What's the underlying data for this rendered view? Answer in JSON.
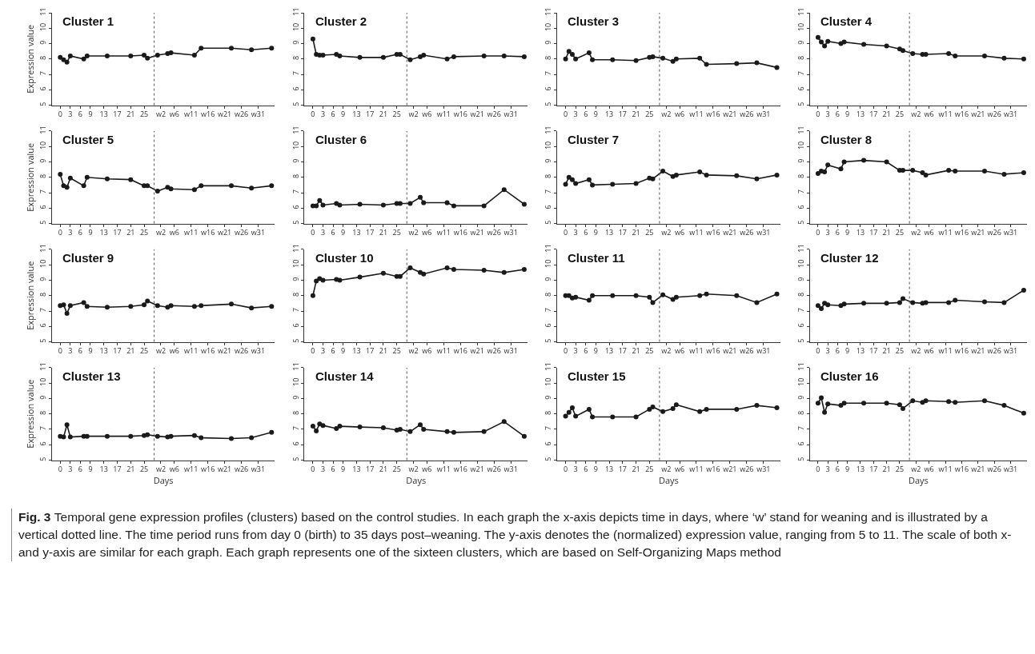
{
  "chart_data": [
    {
      "type": "line",
      "title": "Cluster 1",
      "ylabel": "Expression value",
      "x": [
        0,
        1,
        2,
        3,
        7,
        8,
        14,
        21,
        25,
        26,
        29,
        32,
        33,
        40,
        42,
        51,
        57,
        63
      ],
      "values": [
        8.1,
        7.95,
        7.8,
        8.2,
        8.0,
        8.2,
        8.2,
        8.2,
        8.25,
        8.05,
        8.25,
        8.35,
        8.4,
        8.25,
        8.7,
        8.7,
        8.6,
        8.7
      ],
      "color": "#1a1a1a",
      "marker": "circle",
      "xlim": [
        -2.5,
        64
      ],
      "ylim": [
        5,
        11
      ],
      "xticks": [
        0,
        3,
        6,
        9,
        13,
        17,
        21,
        25,
        {
          "value": 30,
          "label": "w2"
        },
        {
          "value": 34,
          "label": "w6"
        },
        {
          "value": 39,
          "label": "w11"
        },
        {
          "value": 44,
          "label": "w16"
        },
        {
          "value": 49,
          "label": "w21"
        },
        {
          "value": 54,
          "label": "w26"
        },
        {
          "value": 59,
          "label": "w31"
        }
      ],
      "yticks": [
        5,
        6,
        7,
        8,
        9,
        10,
        11
      ],
      "ref_lines": [
        {
          "axis": "x",
          "value": 28,
          "color": "#555555",
          "line_style": "dotted"
        }
      ]
    },
    {
      "type": "line",
      "title": "Cluster 2",
      "x": [
        0,
        1,
        2,
        3,
        7,
        8,
        14,
        21,
        25,
        26,
        29,
        32,
        33,
        40,
        42,
        51,
        57,
        63
      ],
      "values": [
        9.3,
        8.3,
        8.25,
        8.25,
        8.3,
        8.2,
        8.1,
        8.1,
        8.3,
        8.3,
        7.95,
        8.15,
        8.25,
        8.0,
        8.15,
        8.2,
        8.2,
        8.15
      ],
      "color": "#1a1a1a",
      "marker": "circle",
      "xlim": [
        -2.5,
        64
      ],
      "ylim": [
        5,
        11
      ],
      "xticks": [
        0,
        3,
        6,
        9,
        13,
        17,
        21,
        25,
        {
          "value": 30,
          "label": "w2"
        },
        {
          "value": 34,
          "label": "w6"
        },
        {
          "value": 39,
          "label": "w11"
        },
        {
          "value": 44,
          "label": "w16"
        },
        {
          "value": 49,
          "label": "w21"
        },
        {
          "value": 54,
          "label": "w26"
        },
        {
          "value": 59,
          "label": "w31"
        }
      ],
      "yticks": [
        5,
        6,
        7,
        8,
        9,
        10,
        11
      ],
      "ref_lines": [
        {
          "axis": "x",
          "value": 28,
          "color": "#555555",
          "line_style": "dotted"
        }
      ]
    },
    {
      "type": "line",
      "title": "Cluster 3",
      "x": [
        0,
        1,
        2,
        3,
        7,
        8,
        14,
        21,
        25,
        26,
        29,
        32,
        33,
        40,
        42,
        51,
        57,
        63
      ],
      "values": [
        8.0,
        8.5,
        8.3,
        8.0,
        8.4,
        7.95,
        7.95,
        7.9,
        8.1,
        8.15,
        8.05,
        7.85,
        8.0,
        8.05,
        7.65,
        7.7,
        7.75,
        7.45
      ],
      "color": "#1a1a1a",
      "marker": "circle",
      "xlim": [
        -2.5,
        64
      ],
      "ylim": [
        5,
        11
      ],
      "xticks": [
        0,
        3,
        6,
        9,
        13,
        17,
        21,
        25,
        {
          "value": 30,
          "label": "w2"
        },
        {
          "value": 34,
          "label": "w6"
        },
        {
          "value": 39,
          "label": "w11"
        },
        {
          "value": 44,
          "label": "w16"
        },
        {
          "value": 49,
          "label": "w21"
        },
        {
          "value": 54,
          "label": "w26"
        },
        {
          "value": 59,
          "label": "w31"
        }
      ],
      "yticks": [
        5,
        6,
        7,
        8,
        9,
        10,
        11
      ],
      "ref_lines": [
        {
          "axis": "x",
          "value": 28,
          "color": "#555555",
          "line_style": "dotted"
        }
      ]
    },
    {
      "type": "line",
      "title": "Cluster 4",
      "x": [
        0,
        1,
        2,
        3,
        7,
        8,
        14,
        21,
        25,
        26,
        29,
        32,
        33,
        40,
        42,
        51,
        57,
        63
      ],
      "values": [
        9.4,
        9.1,
        8.85,
        9.15,
        9.0,
        9.1,
        8.95,
        8.85,
        8.65,
        8.55,
        8.35,
        8.3,
        8.3,
        8.35,
        8.2,
        8.2,
        8.05,
        8.0
      ],
      "color": "#1a1a1a",
      "marker": "circle",
      "xlim": [
        -2.5,
        64
      ],
      "ylim": [
        5,
        11
      ],
      "xticks": [
        0,
        3,
        6,
        9,
        13,
        17,
        21,
        25,
        {
          "value": 30,
          "label": "w2"
        },
        {
          "value": 34,
          "label": "w6"
        },
        {
          "value": 39,
          "label": "w11"
        },
        {
          "value": 44,
          "label": "w16"
        },
        {
          "value": 49,
          "label": "w21"
        },
        {
          "value": 54,
          "label": "w26"
        },
        {
          "value": 59,
          "label": "w31"
        }
      ],
      "yticks": [
        5,
        6,
        7,
        8,
        9,
        10,
        11
      ],
      "ref_lines": [
        {
          "axis": "x",
          "value": 28,
          "color": "#555555",
          "line_style": "dotted"
        }
      ]
    },
    {
      "type": "line",
      "title": "Cluster 5",
      "ylabel": "Expression value",
      "x": [
        0,
        1,
        2,
        3,
        7,
        8,
        14,
        21,
        25,
        26,
        29,
        32,
        33,
        40,
        42,
        51,
        57,
        63
      ],
      "values": [
        8.2,
        7.45,
        7.35,
        7.95,
        7.45,
        8.0,
        7.9,
        7.85,
        7.45,
        7.45,
        7.1,
        7.35,
        7.25,
        7.2,
        7.45,
        7.45,
        7.3,
        7.45
      ],
      "color": "#1a1a1a",
      "marker": "circle",
      "xlim": [
        -2.5,
        64
      ],
      "ylim": [
        5,
        11
      ],
      "xticks": [
        0,
        3,
        6,
        9,
        13,
        17,
        21,
        25,
        {
          "value": 30,
          "label": "w2"
        },
        {
          "value": 34,
          "label": "w6"
        },
        {
          "value": 39,
          "label": "w11"
        },
        {
          "value": 44,
          "label": "w16"
        },
        {
          "value": 49,
          "label": "w21"
        },
        {
          "value": 54,
          "label": "w26"
        },
        {
          "value": 59,
          "label": "w31"
        }
      ],
      "yticks": [
        5,
        6,
        7,
        8,
        9,
        10,
        11
      ],
      "ref_lines": [
        {
          "axis": "x",
          "value": 28,
          "color": "#555555",
          "line_style": "dotted"
        }
      ]
    },
    {
      "type": "line",
      "title": "Cluster 6",
      "x": [
        0,
        1,
        2,
        3,
        7,
        8,
        14,
        21,
        25,
        26,
        29,
        32,
        33,
        40,
        42,
        51,
        57,
        63
      ],
      "values": [
        6.15,
        6.15,
        6.5,
        6.2,
        6.3,
        6.2,
        6.25,
        6.2,
        6.3,
        6.3,
        6.3,
        6.7,
        6.35,
        6.35,
        6.15,
        6.15,
        7.2,
        6.25
      ],
      "color": "#1a1a1a",
      "marker": "circle",
      "xlim": [
        -2.5,
        64
      ],
      "ylim": [
        5,
        11
      ],
      "xticks": [
        0,
        3,
        6,
        9,
        13,
        17,
        21,
        25,
        {
          "value": 30,
          "label": "w2"
        },
        {
          "value": 34,
          "label": "w6"
        },
        {
          "value": 39,
          "label": "w11"
        },
        {
          "value": 44,
          "label": "w16"
        },
        {
          "value": 49,
          "label": "w21"
        },
        {
          "value": 54,
          "label": "w26"
        },
        {
          "value": 59,
          "label": "w31"
        }
      ],
      "yticks": [
        5,
        6,
        7,
        8,
        9,
        10,
        11
      ],
      "ref_lines": [
        {
          "axis": "x",
          "value": 28,
          "color": "#555555",
          "line_style": "dotted"
        }
      ]
    },
    {
      "type": "line",
      "title": "Cluster 7",
      "x": [
        0,
        1,
        2,
        3,
        7,
        8,
        14,
        21,
        25,
        26,
        29,
        32,
        33,
        40,
        42,
        51,
        57,
        63
      ],
      "values": [
        7.55,
        8.0,
        7.85,
        7.6,
        7.85,
        7.5,
        7.55,
        7.6,
        7.95,
        7.9,
        8.4,
        8.05,
        8.15,
        8.35,
        8.15,
        8.1,
        7.9,
        8.15
      ],
      "color": "#1a1a1a",
      "marker": "circle",
      "xlim": [
        -2.5,
        64
      ],
      "ylim": [
        5,
        11
      ],
      "xticks": [
        0,
        3,
        6,
        9,
        13,
        17,
        21,
        25,
        {
          "value": 30,
          "label": "w2"
        },
        {
          "value": 34,
          "label": "w6"
        },
        {
          "value": 39,
          "label": "w11"
        },
        {
          "value": 44,
          "label": "w16"
        },
        {
          "value": 49,
          "label": "w21"
        },
        {
          "value": 54,
          "label": "w26"
        },
        {
          "value": 59,
          "label": "w31"
        }
      ],
      "yticks": [
        5,
        6,
        7,
        8,
        9,
        10,
        11
      ],
      "ref_lines": [
        {
          "axis": "x",
          "value": 28,
          "color": "#555555",
          "line_style": "dotted"
        }
      ]
    },
    {
      "type": "line",
      "title": "Cluster 8",
      "x": [
        0,
        1,
        2,
        3,
        7,
        8,
        14,
        21,
        25,
        26,
        29,
        32,
        33,
        40,
        42,
        51,
        57,
        63
      ],
      "values": [
        8.25,
        8.4,
        8.35,
        8.8,
        8.55,
        9.0,
        9.1,
        9.0,
        8.45,
        8.45,
        8.45,
        8.3,
        8.15,
        8.45,
        8.4,
        8.4,
        8.2,
        8.3
      ],
      "color": "#1a1a1a",
      "marker": "circle",
      "xlim": [
        -2.5,
        64
      ],
      "ylim": [
        5,
        11
      ],
      "xticks": [
        0,
        3,
        6,
        9,
        13,
        17,
        21,
        25,
        {
          "value": 30,
          "label": "w2"
        },
        {
          "value": 34,
          "label": "w6"
        },
        {
          "value": 39,
          "label": "w11"
        },
        {
          "value": 44,
          "label": "w16"
        },
        {
          "value": 49,
          "label": "w21"
        },
        {
          "value": 54,
          "label": "w26"
        },
        {
          "value": 59,
          "label": "w31"
        }
      ],
      "yticks": [
        5,
        6,
        7,
        8,
        9,
        10,
        11
      ],
      "ref_lines": [
        {
          "axis": "x",
          "value": 28,
          "color": "#555555",
          "line_style": "dotted"
        }
      ]
    },
    {
      "type": "line",
      "title": "Cluster 9",
      "ylabel": "Expression value",
      "x": [
        0,
        1,
        2,
        3,
        7,
        8,
        14,
        21,
        25,
        26,
        29,
        32,
        33,
        40,
        42,
        51,
        57,
        63
      ],
      "values": [
        7.35,
        7.4,
        6.85,
        7.35,
        7.55,
        7.3,
        7.25,
        7.3,
        7.4,
        7.65,
        7.35,
        7.25,
        7.35,
        7.3,
        7.35,
        7.45,
        7.2,
        7.3
      ],
      "color": "#1a1a1a",
      "marker": "circle",
      "xlim": [
        -2.5,
        64
      ],
      "ylim": [
        5,
        11
      ],
      "xticks": [
        0,
        3,
        6,
        9,
        13,
        17,
        21,
        25,
        {
          "value": 30,
          "label": "w2"
        },
        {
          "value": 34,
          "label": "w6"
        },
        {
          "value": 39,
          "label": "w11"
        },
        {
          "value": 44,
          "label": "w16"
        },
        {
          "value": 49,
          "label": "w21"
        },
        {
          "value": 54,
          "label": "w26"
        },
        {
          "value": 59,
          "label": "w31"
        }
      ],
      "yticks": [
        5,
        6,
        7,
        8,
        9,
        10,
        11
      ],
      "ref_lines": [
        {
          "axis": "x",
          "value": 28,
          "color": "#555555",
          "line_style": "dotted"
        }
      ]
    },
    {
      "type": "line",
      "title": "Cluster 10",
      "x": [
        0,
        1,
        2,
        3,
        7,
        8,
        14,
        21,
        25,
        26,
        29,
        32,
        33,
        40,
        42,
        51,
        57,
        63
      ],
      "values": [
        8.0,
        8.95,
        9.1,
        9.0,
        9.05,
        9.0,
        9.2,
        9.45,
        9.25,
        9.25,
        9.8,
        9.5,
        9.4,
        9.8,
        9.7,
        9.65,
        9.5,
        9.7
      ],
      "color": "#1a1a1a",
      "marker": "circle",
      "xlim": [
        -2.5,
        64
      ],
      "ylim": [
        5,
        11
      ],
      "xticks": [
        0,
        3,
        6,
        9,
        13,
        17,
        21,
        25,
        {
          "value": 30,
          "label": "w2"
        },
        {
          "value": 34,
          "label": "w6"
        },
        {
          "value": 39,
          "label": "w11"
        },
        {
          "value": 44,
          "label": "w16"
        },
        {
          "value": 49,
          "label": "w21"
        },
        {
          "value": 54,
          "label": "w26"
        },
        {
          "value": 59,
          "label": "w31"
        }
      ],
      "yticks": [
        5,
        6,
        7,
        8,
        9,
        10,
        11
      ],
      "ref_lines": [
        {
          "axis": "x",
          "value": 28,
          "color": "#555555",
          "line_style": "dotted"
        }
      ]
    },
    {
      "type": "line",
      "title": "Cluster 11",
      "x": [
        0,
        1,
        2,
        3,
        7,
        8,
        14,
        21,
        25,
        26,
        29,
        32,
        33,
        40,
        42,
        51,
        57,
        63
      ],
      "values": [
        8.0,
        8.0,
        7.85,
        7.9,
        7.7,
        8.0,
        8.0,
        8.0,
        7.9,
        7.55,
        8.05,
        7.75,
        7.9,
        8.0,
        8.1,
        8.0,
        7.55,
        8.1
      ],
      "color": "#1a1a1a",
      "marker": "circle",
      "xlim": [
        -2.5,
        64
      ],
      "ylim": [
        5,
        11
      ],
      "xticks": [
        0,
        3,
        6,
        9,
        13,
        17,
        21,
        25,
        {
          "value": 30,
          "label": "w2"
        },
        {
          "value": 34,
          "label": "w6"
        },
        {
          "value": 39,
          "label": "w11"
        },
        {
          "value": 44,
          "label": "w16"
        },
        {
          "value": 49,
          "label": "w21"
        },
        {
          "value": 54,
          "label": "w26"
        },
        {
          "value": 59,
          "label": "w31"
        }
      ],
      "yticks": [
        5,
        6,
        7,
        8,
        9,
        10,
        11
      ],
      "ref_lines": [
        {
          "axis": "x",
          "value": 28,
          "color": "#555555",
          "line_style": "dotted"
        }
      ]
    },
    {
      "type": "line",
      "title": "Cluster 12",
      "x": [
        0,
        1,
        2,
        3,
        7,
        8,
        14,
        21,
        25,
        26,
        29,
        32,
        33,
        40,
        42,
        51,
        57,
        63
      ],
      "values": [
        7.35,
        7.15,
        7.5,
        7.4,
        7.35,
        7.45,
        7.5,
        7.5,
        7.55,
        7.8,
        7.55,
        7.5,
        7.55,
        7.55,
        7.7,
        7.6,
        7.55,
        8.35
      ],
      "color": "#1a1a1a",
      "marker": "circle",
      "xlim": [
        -2.5,
        64
      ],
      "ylim": [
        5,
        11
      ],
      "xticks": [
        0,
        3,
        6,
        9,
        13,
        17,
        21,
        25,
        {
          "value": 30,
          "label": "w2"
        },
        {
          "value": 34,
          "label": "w6"
        },
        {
          "value": 39,
          "label": "w11"
        },
        {
          "value": 44,
          "label": "w16"
        },
        {
          "value": 49,
          "label": "w21"
        },
        {
          "value": 54,
          "label": "w26"
        },
        {
          "value": 59,
          "label": "w31"
        }
      ],
      "yticks": [
        5,
        6,
        7,
        8,
        9,
        10,
        11
      ],
      "ref_lines": [
        {
          "axis": "x",
          "value": 28,
          "color": "#555555",
          "line_style": "dotted"
        }
      ]
    },
    {
      "type": "line",
      "title": "Cluster 13",
      "xlabel": "Days",
      "ylabel": "Expression value",
      "x": [
        0,
        1,
        2,
        3,
        7,
        8,
        14,
        21,
        25,
        26,
        29,
        32,
        33,
        40,
        42,
        51,
        57,
        63
      ],
      "values": [
        6.55,
        6.5,
        7.3,
        6.5,
        6.55,
        6.55,
        6.55,
        6.55,
        6.6,
        6.65,
        6.55,
        6.5,
        6.55,
        6.6,
        6.45,
        6.4,
        6.45,
        6.8
      ],
      "color": "#1a1a1a",
      "marker": "circle",
      "xlim": [
        -2.5,
        64
      ],
      "ylim": [
        5,
        11
      ],
      "xticks": [
        0,
        3,
        6,
        9,
        13,
        17,
        21,
        25,
        {
          "value": 30,
          "label": "w2"
        },
        {
          "value": 34,
          "label": "w6"
        },
        {
          "value": 39,
          "label": "w11"
        },
        {
          "value": 44,
          "label": "w16"
        },
        {
          "value": 49,
          "label": "w21"
        },
        {
          "value": 54,
          "label": "w26"
        },
        {
          "value": 59,
          "label": "w31"
        }
      ],
      "yticks": [
        5,
        6,
        7,
        8,
        9,
        10,
        11
      ],
      "ref_lines": [
        {
          "axis": "x",
          "value": 28,
          "color": "#555555",
          "line_style": "dotted"
        }
      ]
    },
    {
      "type": "line",
      "title": "Cluster 14",
      "xlabel": "Days",
      "x": [
        0,
        1,
        2,
        3,
        7,
        8,
        14,
        21,
        25,
        26,
        29,
        32,
        33,
        40,
        42,
        51,
        57,
        63
      ],
      "values": [
        7.2,
        6.9,
        7.35,
        7.25,
        7.05,
        7.2,
        7.15,
        7.1,
        6.95,
        7.0,
        6.85,
        7.3,
        7.0,
        6.85,
        6.8,
        6.85,
        7.5,
        6.55
      ],
      "color": "#1a1a1a",
      "marker": "circle",
      "xlim": [
        -2.5,
        64
      ],
      "ylim": [
        5,
        11
      ],
      "xticks": [
        0,
        3,
        6,
        9,
        13,
        17,
        21,
        25,
        {
          "value": 30,
          "label": "w2"
        },
        {
          "value": 34,
          "label": "w6"
        },
        {
          "value": 39,
          "label": "w11"
        },
        {
          "value": 44,
          "label": "w16"
        },
        {
          "value": 49,
          "label": "w21"
        },
        {
          "value": 54,
          "label": "w26"
        },
        {
          "value": 59,
          "label": "w31"
        }
      ],
      "yticks": [
        5,
        6,
        7,
        8,
        9,
        10,
        11
      ],
      "ref_lines": [
        {
          "axis": "x",
          "value": 28,
          "color": "#555555",
          "line_style": "dotted"
        }
      ]
    },
    {
      "type": "line",
      "title": "Cluster 15",
      "xlabel": "Days",
      "x": [
        0,
        1,
        2,
        3,
        7,
        8,
        14,
        21,
        25,
        26,
        29,
        32,
        33,
        40,
        42,
        51,
        57,
        63
      ],
      "values": [
        7.85,
        8.1,
        8.4,
        7.85,
        8.3,
        7.8,
        7.8,
        7.8,
        8.3,
        8.45,
        8.15,
        8.35,
        8.6,
        8.15,
        8.3,
        8.3,
        8.55,
        8.4
      ],
      "color": "#1a1a1a",
      "marker": "circle",
      "xlim": [
        -2.5,
        64
      ],
      "ylim": [
        5,
        11
      ],
      "xticks": [
        0,
        3,
        6,
        9,
        13,
        17,
        21,
        25,
        {
          "value": 30,
          "label": "w2"
        },
        {
          "value": 34,
          "label": "w6"
        },
        {
          "value": 39,
          "label": "w11"
        },
        {
          "value": 44,
          "label": "w16"
        },
        {
          "value": 49,
          "label": "w21"
        },
        {
          "value": 54,
          "label": "w26"
        },
        {
          "value": 59,
          "label": "w31"
        }
      ],
      "yticks": [
        5,
        6,
        7,
        8,
        9,
        10,
        11
      ],
      "ref_lines": [
        {
          "axis": "x",
          "value": 28,
          "color": "#555555",
          "line_style": "dotted"
        }
      ]
    },
    {
      "type": "line",
      "title": "Cluster 16",
      "xlabel": "Days",
      "x": [
        0,
        1,
        2,
        3,
        7,
        8,
        14,
        21,
        25,
        26,
        29,
        32,
        33,
        40,
        42,
        51,
        57,
        63
      ],
      "values": [
        8.7,
        9.05,
        8.1,
        8.65,
        8.55,
        8.7,
        8.7,
        8.7,
        8.6,
        8.35,
        8.85,
        8.75,
        8.85,
        8.8,
        8.75,
        8.85,
        8.55,
        8.05
      ],
      "color": "#1a1a1a",
      "marker": "circle",
      "xlim": [
        -2.5,
        64
      ],
      "ylim": [
        5,
        11
      ],
      "xticks": [
        0,
        3,
        6,
        9,
        13,
        17,
        21,
        25,
        {
          "value": 30,
          "label": "w2"
        },
        {
          "value": 34,
          "label": "w6"
        },
        {
          "value": 39,
          "label": "w11"
        },
        {
          "value": 44,
          "label": "w16"
        },
        {
          "value": 49,
          "label": "w21"
        },
        {
          "value": 54,
          "label": "w26"
        },
        {
          "value": 59,
          "label": "w31"
        }
      ],
      "yticks": [
        5,
        6,
        7,
        8,
        9,
        10,
        11
      ],
      "ref_lines": [
        {
          "axis": "x",
          "value": 28,
          "color": "#555555",
          "line_style": "dotted"
        }
      ]
    },
    {
      "type": "other",
      "annotations": [
        "Fig. 3",
        "Temporal gene expression profiles (clusters) based on the control studies. In each graph the x-axis depicts time in days, where ‘w’ stand for weaning and is illustrated by a vertical dotted line. The time period runs from day 0 (birth) to 35 days post–weaning. The y-axis denotes the (normalized) expression value, ranging from 5 to 11. The scale of both x- and y-axis are similar for each graph. Each graph represents one of the sixteen clusters, which are based on Self-Organizing Maps method"
      ]
    }
  ]
}
